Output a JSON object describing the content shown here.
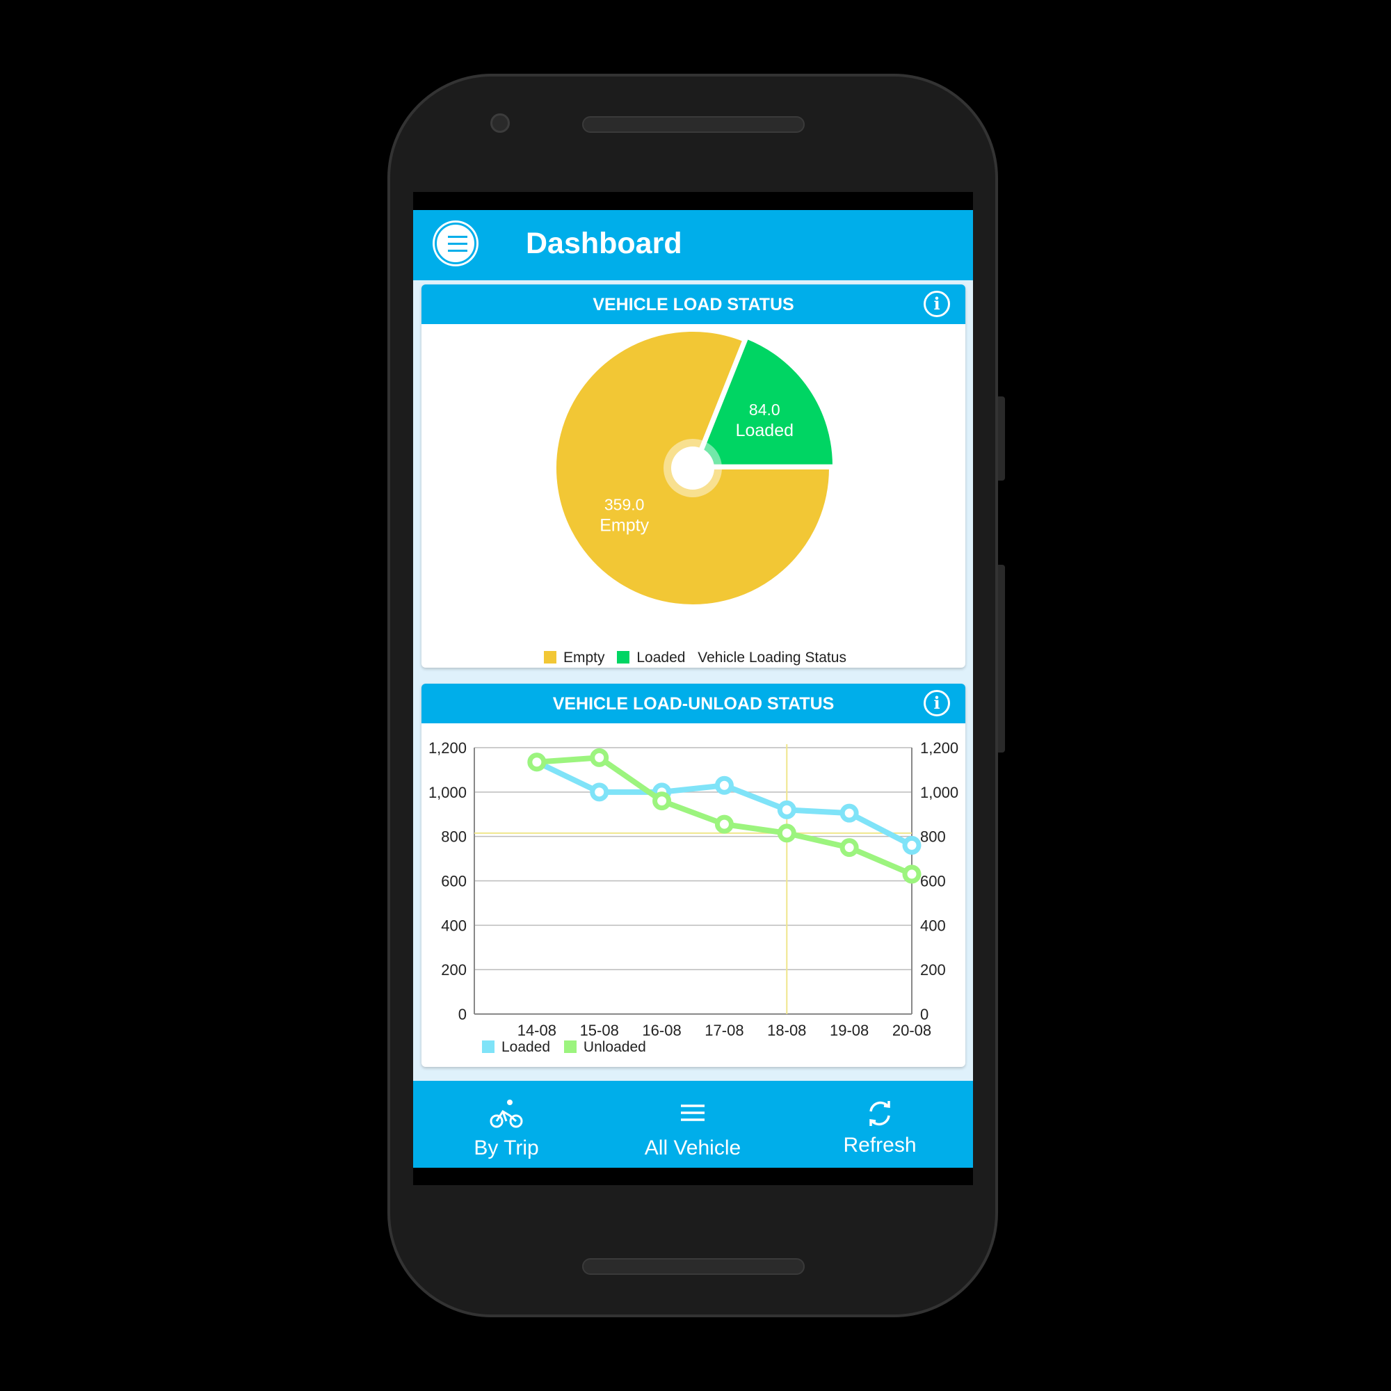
{
  "app": {
    "title": "Dashboard",
    "accent": "#00aeea"
  },
  "cards": [
    {
      "title": "VEHICLE LOAD STATUS",
      "info_icon": "info-icon"
    },
    {
      "title": "VEHICLE LOAD-UNLOAD STATUS",
      "info_icon": "info-icon"
    }
  ],
  "chart_data": [
    {
      "type": "pie",
      "slices": [
        {
          "label": "Empty",
          "value": 359.0,
          "value_label": "359.0",
          "color": "#f2c735"
        },
        {
          "label": "Loaded",
          "value": 84.0,
          "value_label": "84.0",
          "color": "#00d563"
        }
      ],
      "legend": {
        "entries": [
          "Empty",
          "Loaded"
        ],
        "description": "Vehicle Loading Status",
        "placement": "bottom"
      }
    },
    {
      "type": "line",
      "categories": [
        "14-08",
        "15-08",
        "16-08",
        "17-08",
        "18-08",
        "19-08",
        "20-08"
      ],
      "series": [
        {
          "name": "Loaded",
          "color": "#7fe3f8",
          "values": [
            1135,
            1000,
            1000,
            1030,
            920,
            905,
            760
          ]
        },
        {
          "name": "Unloaded",
          "color": "#9cf47e",
          "values": [
            1135,
            1155,
            960,
            855,
            815,
            750,
            630
          ]
        }
      ],
      "ylim": [
        0,
        1200
      ],
      "yticks": [
        "0",
        "200",
        "400",
        "600",
        "800",
        "1,000",
        "1,200"
      ],
      "grid": true,
      "dual_y_axis": true,
      "highlight": {
        "category": "18-08",
        "value": 815,
        "color": "#f0e68c"
      },
      "legend": {
        "placement": "bottom-left"
      }
    }
  ],
  "bottom_nav": [
    {
      "label": "By Trip",
      "icon": "bicycle-icon"
    },
    {
      "label": "All Vehicle",
      "icon": "list-icon"
    },
    {
      "label": "Refresh",
      "icon": "refresh-icon"
    }
  ]
}
